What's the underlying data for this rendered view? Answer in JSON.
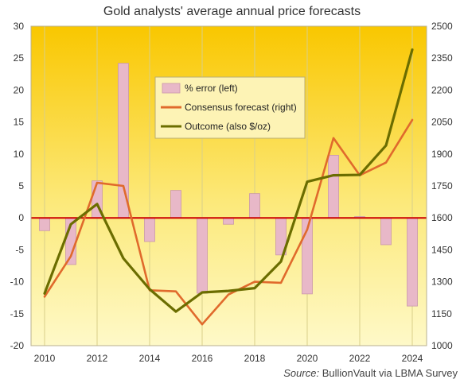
{
  "chart_data": {
    "type": "bar+line",
    "title": "Gold analysts' average annual price forecasts",
    "source_label": "Source:",
    "source_text": "BullionVault via LBMA Survey",
    "x": [
      2010,
      2011,
      2012,
      2013,
      2014,
      2015,
      2016,
      2017,
      2018,
      2019,
      2020,
      2021,
      2022,
      2023,
      2024
    ],
    "x_ticks": [
      "2010",
      "2012",
      "2014",
      "2016",
      "2018",
      "2020",
      "2022",
      "2024"
    ],
    "y_left": {
      "min": -20,
      "max": 30,
      "step": 5
    },
    "y_right": {
      "min": 1000,
      "max": 2500,
      "step": 150
    },
    "series": [
      {
        "name": "% error (left)",
        "type": "bar",
        "axis": "left",
        "color": "#e8b8c8",
        "values": [
          -2,
          -7.3,
          5.8,
          24.2,
          -3.7,
          4.3,
          -11.8,
          -1,
          3.8,
          -5.8,
          -11.9,
          9.8,
          0.2,
          -4.2,
          -13.8
        ]
      },
      {
        "name": "Consensus forecast (right)",
        "type": "line",
        "axis": "right",
        "color": "#e06a2c",
        "values": [
          1230,
          1420,
          1765,
          1750,
          1260,
          1255,
          1100,
          1240,
          1300,
          1295,
          1545,
          1975,
          1800,
          1860,
          2060
        ]
      },
      {
        "name": "Outcome (also $/oz)",
        "type": "line",
        "axis": "right",
        "color": "#6b6d00",
        "values": [
          1245,
          1570,
          1665,
          1410,
          1265,
          1160,
          1250,
          1257,
          1270,
          1395,
          1770,
          1800,
          1802,
          1940,
          2390
        ]
      }
    ],
    "zero_line_color": "#cc0000",
    "legend_position": "top-center",
    "grid": "vertical"
  }
}
